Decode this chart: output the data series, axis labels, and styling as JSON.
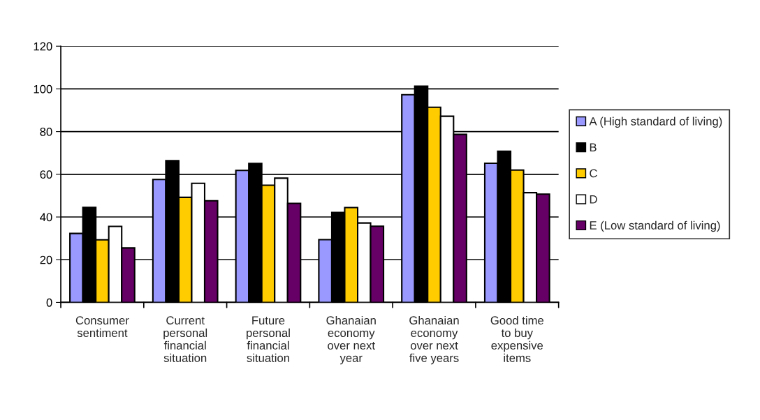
{
  "chart_data": {
    "type": "bar",
    "categories": [
      "Consumer sentiment",
      "Current personal financial situation",
      "Future personal financial situation",
      "Ghanaian economy over next year",
      "Ghanaian economy over next five years",
      "Good time to buy expensive items"
    ],
    "series": [
      {
        "name": "A (High standard of living)",
        "color": "#9999ff",
        "values": [
          32.3,
          57.6,
          61.8,
          29.4,
          97.3,
          65.2
        ]
      },
      {
        "name": "B",
        "color": "#000000",
        "values": [
          44.5,
          66.4,
          65.1,
          42.1,
          101.3,
          70.8
        ]
      },
      {
        "name": "C",
        "color": "#ffcc00",
        "values": [
          29.3,
          49.2,
          54.9,
          44.4,
          91.4,
          62.0
        ]
      },
      {
        "name": "D",
        "color": "#ffffff",
        "values": [
          35.6,
          55.8,
          58.2,
          37.2,
          87.2,
          51.4
        ]
      },
      {
        "name": "E (Low standard of living)",
        "color": "#660066",
        "values": [
          25.5,
          47.6,
          46.4,
          35.7,
          78.7,
          50.7
        ]
      }
    ],
    "ylim": [
      0,
      120
    ],
    "yticks": [
      0,
      20,
      40,
      60,
      80,
      100,
      120
    ],
    "grid": "y",
    "legend": "right"
  }
}
